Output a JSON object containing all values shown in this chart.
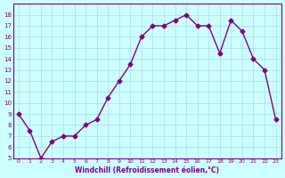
{
  "x": [
    0,
    1,
    2,
    3,
    4,
    5,
    6,
    7,
    8,
    9,
    10,
    11,
    12,
    13,
    14,
    15,
    16,
    17,
    18,
    19,
    20,
    21,
    22,
    23
  ],
  "y": [
    9,
    7.5,
    5,
    6.5,
    7,
    7,
    8,
    8.5,
    10.5,
    12,
    13.5,
    16,
    17,
    17,
    17.5,
    18,
    17,
    17,
    14.5,
    17.5,
    16.5,
    14,
    13,
    8.5
  ],
  "line_color": "#800080",
  "marker": "D",
  "marker_size": 2.5,
  "bg_color": "#ccffff",
  "grid_color": "#aadddd",
  "xlabel": "Windchill (Refroidissement éolien,°C)",
  "ylim": [
    5,
    19
  ],
  "xlim_min": -0.5,
  "xlim_max": 23.5,
  "yticks": [
    5,
    6,
    7,
    8,
    9,
    10,
    11,
    12,
    13,
    14,
    15,
    16,
    17,
    18
  ],
  "xticks": [
    0,
    1,
    2,
    3,
    4,
    5,
    6,
    7,
    8,
    9,
    10,
    11,
    12,
    13,
    14,
    15,
    16,
    17,
    18,
    19,
    20,
    21,
    22,
    23
  ]
}
